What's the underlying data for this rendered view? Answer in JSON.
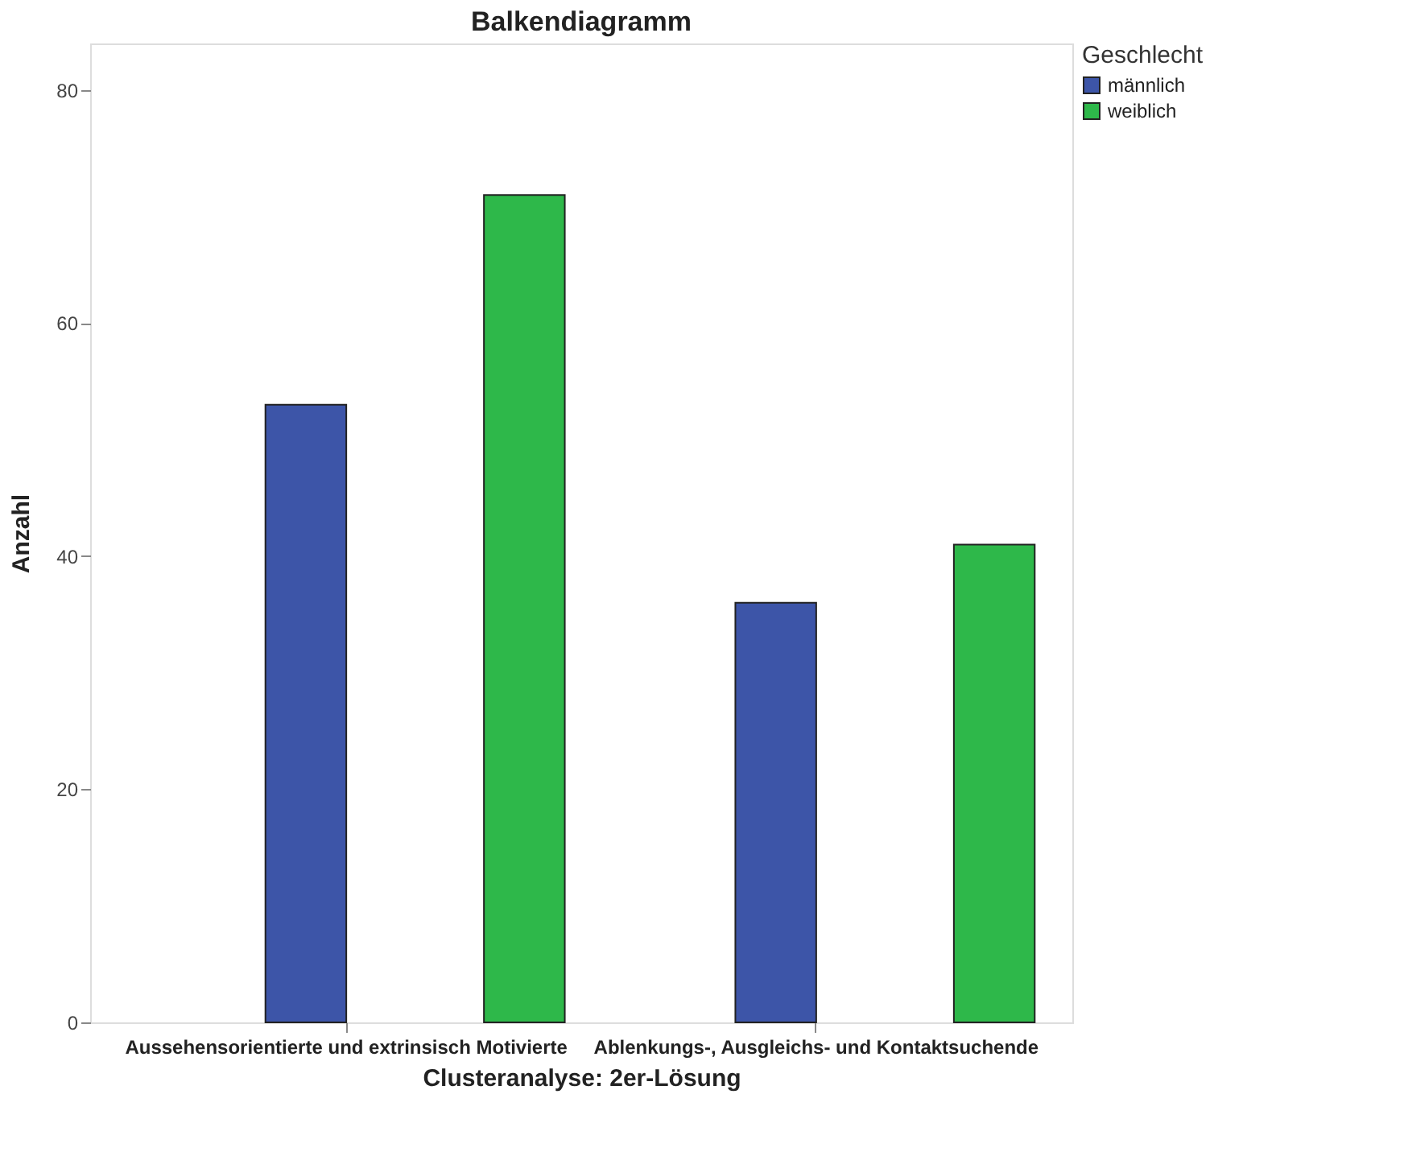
{
  "chart_data": {
    "type": "bar",
    "title": "Balkendiagramm",
    "xlabel": "Clusteranalyse: 2er-Lösung",
    "ylabel": "Anzahl",
    "legend_title": "Geschlecht",
    "categories": [
      "Aussehensorientierte und extrinsisch Motivierte",
      "Ablenkungs-, Ausgleichs- und Kontaktsuchende"
    ],
    "series": [
      {
        "name": "männlich",
        "color": "#3d55a8",
        "values": [
          53,
          36
        ]
      },
      {
        "name": "weiblich",
        "color": "#2eb84a",
        "values": [
          71,
          41
        ]
      }
    ],
    "ylim": [
      0,
      84
    ],
    "yticks": [
      0,
      20,
      40,
      60,
      80
    ],
    "grid": false,
    "legend": "top right"
  }
}
